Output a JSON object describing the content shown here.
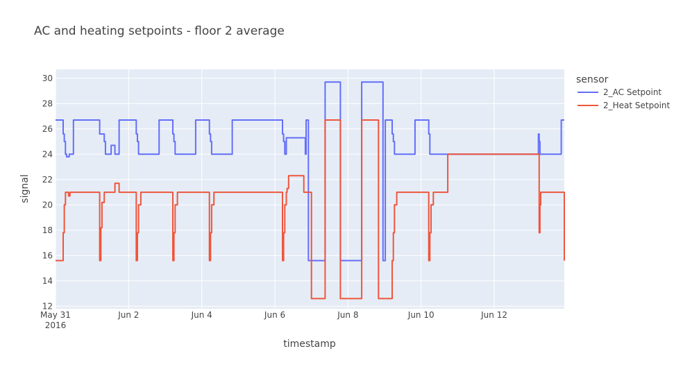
{
  "chart_data": {
    "type": "line",
    "title": "AC and heating setpoints - floor 2 average",
    "xlabel": "timestamp",
    "ylabel": "signal",
    "x_ticks": [
      {
        "date": "2016-05-31",
        "label": "May 31",
        "sublabel": "2016"
      },
      {
        "date": "2016-06-02",
        "label": "Jun 2",
        "sublabel": ""
      },
      {
        "date": "2016-06-04",
        "label": "Jun 4",
        "sublabel": ""
      },
      {
        "date": "2016-06-06",
        "label": "Jun 6",
        "sublabel": ""
      },
      {
        "date": "2016-06-08",
        "label": "Jun 8",
        "sublabel": ""
      },
      {
        "date": "2016-06-10",
        "label": "Jun 10",
        "sublabel": ""
      },
      {
        "date": "2016-06-12",
        "label": "Jun 12",
        "sublabel": ""
      }
    ],
    "y_ticks": [
      12,
      14,
      16,
      18,
      20,
      22,
      24,
      26,
      28,
      30
    ],
    "xlim": [
      "2016-05-31T00:00",
      "2016-06-13T22:00"
    ],
    "ylim": [
      11.8,
      30.7
    ],
    "grid": true,
    "legend": {
      "title": "sensor",
      "placement": "right"
    },
    "series": [
      {
        "name": "2_AC Setpoint",
        "color": "#636efa",
        "x": [
          "2016-05-31T00:00",
          "2016-05-31T05:00",
          "2016-05-31T05:45",
          "2016-05-31T06:30",
          "2016-05-31T07:15",
          "2016-05-31T09:00",
          "2016-05-31T10:30",
          "2016-05-31T11:45",
          "2016-06-01T05:00",
          "2016-06-01T08:00",
          "2016-06-01T08:45",
          "2016-06-01T09:30",
          "2016-06-01T12:30",
          "2016-06-01T15:00",
          "2016-06-01T17:45",
          "2016-06-01T21:30",
          "2016-06-02T05:00",
          "2016-06-02T05:45",
          "2016-06-02T06:30",
          "2016-06-02T07:30",
          "2016-06-02T20:00",
          "2016-06-03T05:00",
          "2016-06-03T05:45",
          "2016-06-03T06:30",
          "2016-06-03T07:30",
          "2016-06-03T20:00",
          "2016-06-04T05:00",
          "2016-06-04T05:45",
          "2016-06-04T06:30",
          "2016-06-04T07:30",
          "2016-06-04T20:00",
          "2016-06-06T05:00",
          "2016-06-06T05:45",
          "2016-06-06T06:30",
          "2016-06-06T07:30",
          "2016-06-06T08:30",
          "2016-06-06T20:00",
          "2016-06-06T20:30",
          "2016-06-06T21:00",
          "2016-06-06T22:00",
          "2016-06-07T09:00",
          "2016-06-07T19:00",
          "2016-06-08T09:00",
          "2016-06-08T19:00",
          "2016-06-08T23:00",
          "2016-06-09T00:30",
          "2016-06-09T01:00",
          "2016-06-09T05:00",
          "2016-06-09T05:45",
          "2016-06-09T06:30",
          "2016-06-09T07:30",
          "2016-06-09T20:00",
          "2016-06-10T05:00",
          "2016-06-10T05:45",
          "2016-06-10T07:30",
          "2016-06-13T05:00",
          "2016-06-13T05:30",
          "2016-06-13T06:00",
          "2016-06-13T07:00",
          "2016-06-13T20:00",
          "2016-06-13T22:00"
        ],
        "y": [
          26.7,
          25.6,
          25,
          24,
          23.8,
          24,
          24,
          26.7,
          25.6,
          25,
          24,
          24,
          24.7,
          24,
          26.7,
          26.7,
          25.6,
          25,
          24,
          24,
          26.7,
          25.6,
          25,
          24,
          24,
          26.7,
          25.6,
          25,
          24,
          24,
          26.7,
          25.6,
          25,
          24,
          25.3,
          25.3,
          24,
          26.7,
          26.7,
          15.6,
          29.7,
          15.6,
          29.7,
          29.7,
          15.6,
          26.7,
          26.7,
          25.6,
          25,
          24,
          24,
          26.7,
          25.6,
          24,
          24,
          25.6,
          25,
          24,
          24,
          26.7,
          26.7
        ]
      },
      {
        "name": "2_Heat Setpoint",
        "color": "#ef553b",
        "x": [
          "2016-05-31T00:00",
          "2016-05-31T05:00",
          "2016-05-31T05:45",
          "2016-05-31T06:30",
          "2016-05-31T08:30",
          "2016-05-31T09:30",
          "2016-05-31T14:00",
          "2016-06-01T05:00",
          "2016-06-01T05:45",
          "2016-06-01T06:30",
          "2016-06-01T08:00",
          "2016-06-01T12:30",
          "2016-06-01T15:00",
          "2016-06-01T17:45",
          "2016-06-01T21:30",
          "2016-06-02T05:00",
          "2016-06-02T05:45",
          "2016-06-02T06:30",
          "2016-06-02T08:00",
          "2016-06-02T17:45",
          "2016-06-02T20:00",
          "2016-06-03T05:00",
          "2016-06-03T05:45",
          "2016-06-03T06:30",
          "2016-06-03T08:00",
          "2016-06-03T17:45",
          "2016-06-03T20:00",
          "2016-06-04T05:00",
          "2016-06-04T05:45",
          "2016-06-04T06:30",
          "2016-06-04T08:00",
          "2016-06-04T17:45",
          "2016-06-04T20:00",
          "2016-06-06T05:00",
          "2016-06-06T05:45",
          "2016-06-06T06:30",
          "2016-06-06T07:30",
          "2016-06-06T08:00",
          "2016-06-06T09:00",
          "2016-06-06T16:00",
          "2016-06-06T17:00",
          "2016-06-06T19:00",
          "2016-06-07T00:00",
          "2016-06-07T07:30",
          "2016-06-07T09:00",
          "2016-06-07T17:30",
          "2016-06-07T19:00",
          "2016-06-08T04:00",
          "2016-06-08T09:00",
          "2016-06-08T19:00",
          "2016-06-08T20:00",
          "2016-06-09T05:00",
          "2016-06-09T05:45",
          "2016-06-09T06:30",
          "2016-06-09T08:00",
          "2016-06-09T17:45",
          "2016-06-09T20:00",
          "2016-06-10T05:00",
          "2016-06-10T05:45",
          "2016-06-10T06:30",
          "2016-06-10T08:00",
          "2016-06-10T14:00",
          "2016-06-10T17:30",
          "2016-06-11T05:00",
          "2016-06-13T05:00",
          "2016-06-13T05:30",
          "2016-06-13T06:00",
          "2016-06-13T06:30",
          "2016-06-13T07:00",
          "2016-06-13T21:00",
          "2016-06-13T22:00"
        ],
        "y": [
          15.6,
          17.8,
          20,
          21,
          20.7,
          21,
          21,
          15.6,
          18.2,
          20.2,
          21,
          21,
          21.7,
          21,
          21,
          15.6,
          17.8,
          20,
          21,
          21,
          21,
          15.6,
          17.8,
          20,
          21,
          21,
          21,
          15.6,
          17.8,
          20,
          21,
          21,
          21,
          15.6,
          17.8,
          20,
          21,
          21.3,
          22.3,
          22.3,
          22.3,
          21,
          12.6,
          12.6,
          26.7,
          26.7,
          12.6,
          12.6,
          26.7,
          26.7,
          12.6,
          15.6,
          17.8,
          20,
          21,
          21,
          21,
          15.6,
          17.8,
          20,
          21,
          21,
          24,
          24,
          24,
          17.8,
          20,
          21,
          21,
          21,
          15.6
        ]
      }
    ]
  }
}
